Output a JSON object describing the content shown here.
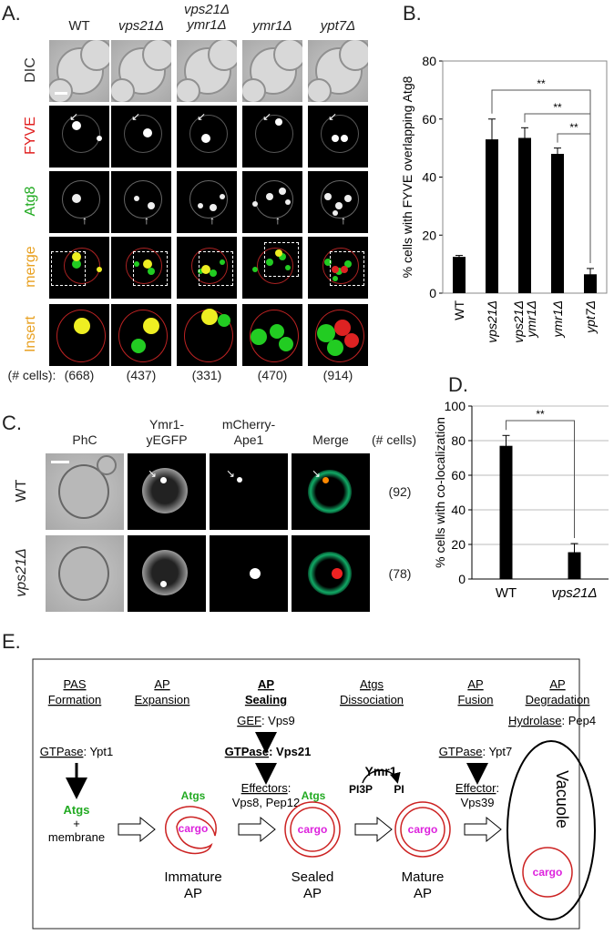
{
  "panelA": {
    "label": "A.",
    "columns": [
      "WT",
      "vps21Δ",
      "vps21Δ ymr1Δ",
      "ymr1Δ",
      "ypt7Δ"
    ],
    "column_lines": [
      [
        "WT"
      ],
      [
        "vps21Δ"
      ],
      [
        "vps21Δ",
        "ymr1Δ"
      ],
      [
        "ymr1Δ"
      ],
      [
        "ypt7Δ"
      ]
    ],
    "rows": [
      "DIC",
      "FYVE",
      "Atg8",
      "merge",
      "Insert"
    ],
    "row_colors": [
      "#333333",
      "#e02020",
      "#22aa22",
      "#e8a020",
      "#e8a020"
    ],
    "cells_label": "(# cells):",
    "counts": [
      "(668)",
      "(437)",
      "(331)",
      "(470)",
      "(914)"
    ]
  },
  "panelB": {
    "label": "B.",
    "sig": "**"
  },
  "panelC": {
    "label": "C.",
    "columns": [
      "PhC",
      "Ymr1-\nyEGFP",
      "mCherry-\nApe1",
      "Merge"
    ],
    "column_lines": [
      [
        "PhC"
      ],
      [
        "Ymr1-",
        "yEGFP"
      ],
      [
        "mCherry-",
        "Ape1"
      ],
      [
        "Merge"
      ]
    ],
    "cells_header": "(# cells)",
    "rows": [
      "WT",
      "vps21Δ"
    ],
    "counts": [
      "(92)",
      "(78)"
    ]
  },
  "panelD": {
    "label": "D.",
    "sig": "**"
  },
  "panelE": {
    "label": "E.",
    "stages": [
      {
        "line1": "PAS",
        "line2": "Formation"
      },
      {
        "line1": "AP",
        "line2": "Expansion"
      },
      {
        "line1": "AP",
        "line2": "Sealing"
      },
      {
        "line1": "Atgs",
        "line2": "Dissociation"
      },
      {
        "line1": "AP",
        "line2": "Fusion"
      },
      {
        "line1": "AP",
        "line2": "Degradation"
      }
    ],
    "gef": {
      "key": "GEF",
      "value": ": Vps9"
    },
    "gtpase1": {
      "key": "GTPase",
      "value": ": Ypt1"
    },
    "gtpase_main": {
      "key": "GTPase",
      "value": ": Vps21"
    },
    "gtpase2": {
      "key": "GTPase",
      "value": ": Ypt7"
    },
    "hydrolase": {
      "key": "Hydrolase",
      "value": ": Pep4"
    },
    "effectors": {
      "key": "Effectors",
      "value": ":",
      "line2": "Vps8, Pep12"
    },
    "effector": {
      "key": "Effector",
      "value": ":",
      "line2": "Vps39"
    },
    "ymr1": "Ymr1",
    "pi3p": "PI3P",
    "pi": "PI",
    "atgs": "Atgs",
    "plus": "+",
    "membrane": "membrane",
    "cargo": "cargo",
    "vacuole": "Vacuole",
    "labels": [
      {
        "line1": "Immature",
        "line2": "AP"
      },
      {
        "line1": "Sealed",
        "line2": "AP"
      },
      {
        "line1": "Mature",
        "line2": "AP"
      }
    ]
  },
  "chart_data": [
    {
      "type": "bar",
      "panel": "B",
      "categories": [
        "WT",
        "vps21Δ",
        "vps21Δ ymr1Δ",
        "ymr1Δ",
        "ypt7Δ"
      ],
      "values": [
        12.5,
        53,
        53.5,
        48,
        6.5
      ],
      "errors": [
        0.5,
        7,
        3.5,
        2,
        2
      ],
      "ylabel": "% cells with FYVE overlapping Atg8",
      "ylim": [
        0,
        80
      ],
      "yticks": [
        0,
        20,
        40,
        60,
        80
      ],
      "grid": false,
      "significance": [
        {
          "from": 1,
          "to": 4,
          "label": "**"
        },
        {
          "from": 2,
          "to": 4,
          "label": "**"
        },
        {
          "from": 3,
          "to": 4,
          "label": "**"
        }
      ]
    },
    {
      "type": "bar",
      "panel": "D",
      "categories": [
        "WT",
        "vps21Δ"
      ],
      "values": [
        77,
        15.5
      ],
      "errors": [
        6,
        5
      ],
      "ylabel": "% cells with co-localization",
      "ylim": [
        0,
        100
      ],
      "yticks": [
        0,
        20,
        40,
        60,
        80,
        100
      ],
      "grid": true,
      "significance": [
        {
          "from": 0,
          "to": 1,
          "label": "**"
        }
      ]
    }
  ]
}
